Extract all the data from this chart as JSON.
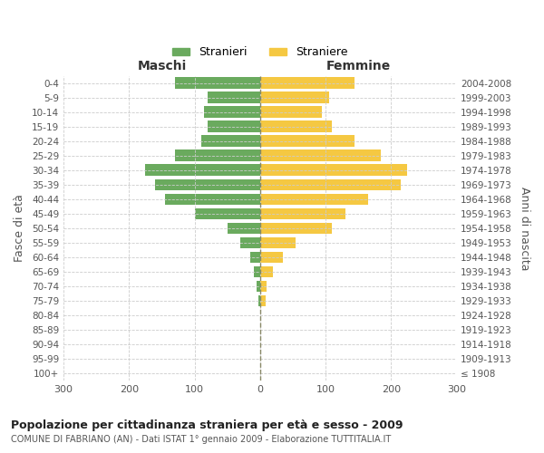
{
  "age_groups": [
    "100+",
    "95-99",
    "90-94",
    "85-89",
    "80-84",
    "75-79",
    "70-74",
    "65-69",
    "60-64",
    "55-59",
    "50-54",
    "45-49",
    "40-44",
    "35-39",
    "30-34",
    "25-29",
    "20-24",
    "15-19",
    "10-14",
    "5-9",
    "0-4"
  ],
  "birth_years": [
    "≤ 1908",
    "1909-1913",
    "1914-1918",
    "1919-1923",
    "1924-1928",
    "1929-1933",
    "1934-1938",
    "1939-1943",
    "1944-1948",
    "1949-1953",
    "1954-1958",
    "1959-1963",
    "1964-1968",
    "1969-1973",
    "1974-1978",
    "1979-1983",
    "1984-1988",
    "1989-1993",
    "1994-1998",
    "1999-2003",
    "2004-2008"
  ],
  "males": [
    0,
    0,
    0,
    0,
    0,
    3,
    5,
    10,
    15,
    30,
    50,
    100,
    145,
    160,
    175,
    130,
    90,
    80,
    85,
    80,
    130
  ],
  "females": [
    0,
    0,
    0,
    0,
    0,
    8,
    10,
    20,
    35,
    55,
    110,
    130,
    165,
    215,
    225,
    185,
    145,
    110,
    95,
    105,
    145
  ],
  "male_color": "#6aaa5e",
  "female_color": "#f5c842",
  "bar_height": 0.8,
  "xlim": 300,
  "title": "Popolazione per cittadinanza straniera per età e sesso - 2009",
  "subtitle": "COMUNE DI FABRIANO (AN) - Dati ISTAT 1° gennaio 2009 - Elaborazione TUTTITALIA.IT",
  "ylabel_left": "Fasce di età",
  "ylabel_right": "Anni di nascita",
  "legend_male": "Stranieri",
  "legend_female": "Straniere",
  "maschi_label": "Maschi",
  "femmine_label": "Femmine",
  "background_color": "#ffffff",
  "grid_color": "#cccccc",
  "text_color": "#555555"
}
